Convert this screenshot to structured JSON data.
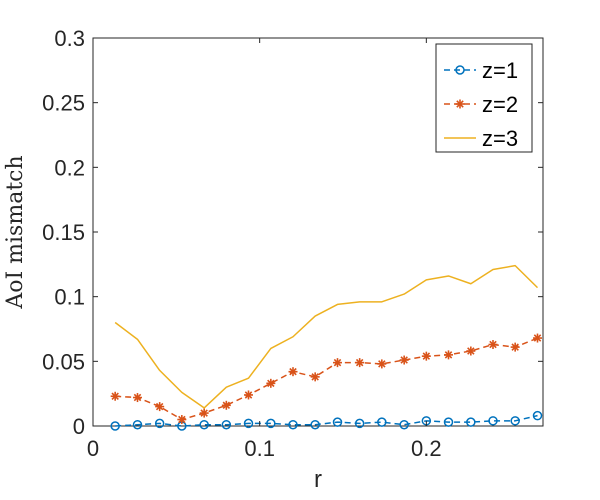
{
  "chart_data": {
    "type": "line",
    "xlabel": "r",
    "ylabel": "AoI mismatch",
    "xlim": [
      0,
      0.27
    ],
    "ylim": [
      0,
      0.3
    ],
    "xticks": [
      0,
      0.1,
      0.2
    ],
    "xtick_labels": [
      "0",
      "0.1",
      "0.2"
    ],
    "yticks": [
      0,
      0.05,
      0.1,
      0.15,
      0.2,
      0.25,
      0.3
    ],
    "ytick_labels": [
      "0",
      "0.05",
      "0.1",
      "0.15",
      "0.2",
      "0.25",
      "0.3"
    ],
    "grid": false,
    "legend_position": "top-right",
    "x": [
      0.0133,
      0.0267,
      0.04,
      0.0533,
      0.0667,
      0.08,
      0.0933,
      0.1067,
      0.12,
      0.1333,
      0.1467,
      0.16,
      0.1733,
      0.1867,
      0.2,
      0.2133,
      0.2267,
      0.24,
      0.2533,
      0.2667
    ],
    "series": [
      {
        "name": "z=1",
        "color": "#0072BD",
        "line_style": "dashed",
        "marker": "circle",
        "values": [
          0.0,
          0.001,
          0.002,
          0.0,
          0.001,
          0.001,
          0.002,
          0.002,
          0.001,
          0.001,
          0.003,
          0.002,
          0.003,
          0.001,
          0.004,
          0.003,
          0.003,
          0.004,
          0.004,
          0.008
        ]
      },
      {
        "name": "z=2",
        "color": "#D95319",
        "line_style": "dashed",
        "marker": "star",
        "values": [
          0.023,
          0.022,
          0.015,
          0.005,
          0.01,
          0.016,
          0.024,
          0.033,
          0.042,
          0.038,
          0.049,
          0.049,
          0.048,
          0.051,
          0.054,
          0.055,
          0.058,
          0.063,
          0.061,
          0.068
        ]
      },
      {
        "name": "z=3",
        "color": "#EDB120",
        "line_style": "solid",
        "marker": "none",
        "values": [
          0.08,
          0.067,
          0.043,
          0.026,
          0.014,
          0.03,
          0.037,
          0.06,
          0.069,
          0.085,
          0.094,
          0.096,
          0.096,
          0.102,
          0.113,
          0.116,
          0.11,
          0.121,
          0.124,
          0.107
        ]
      }
    ]
  }
}
